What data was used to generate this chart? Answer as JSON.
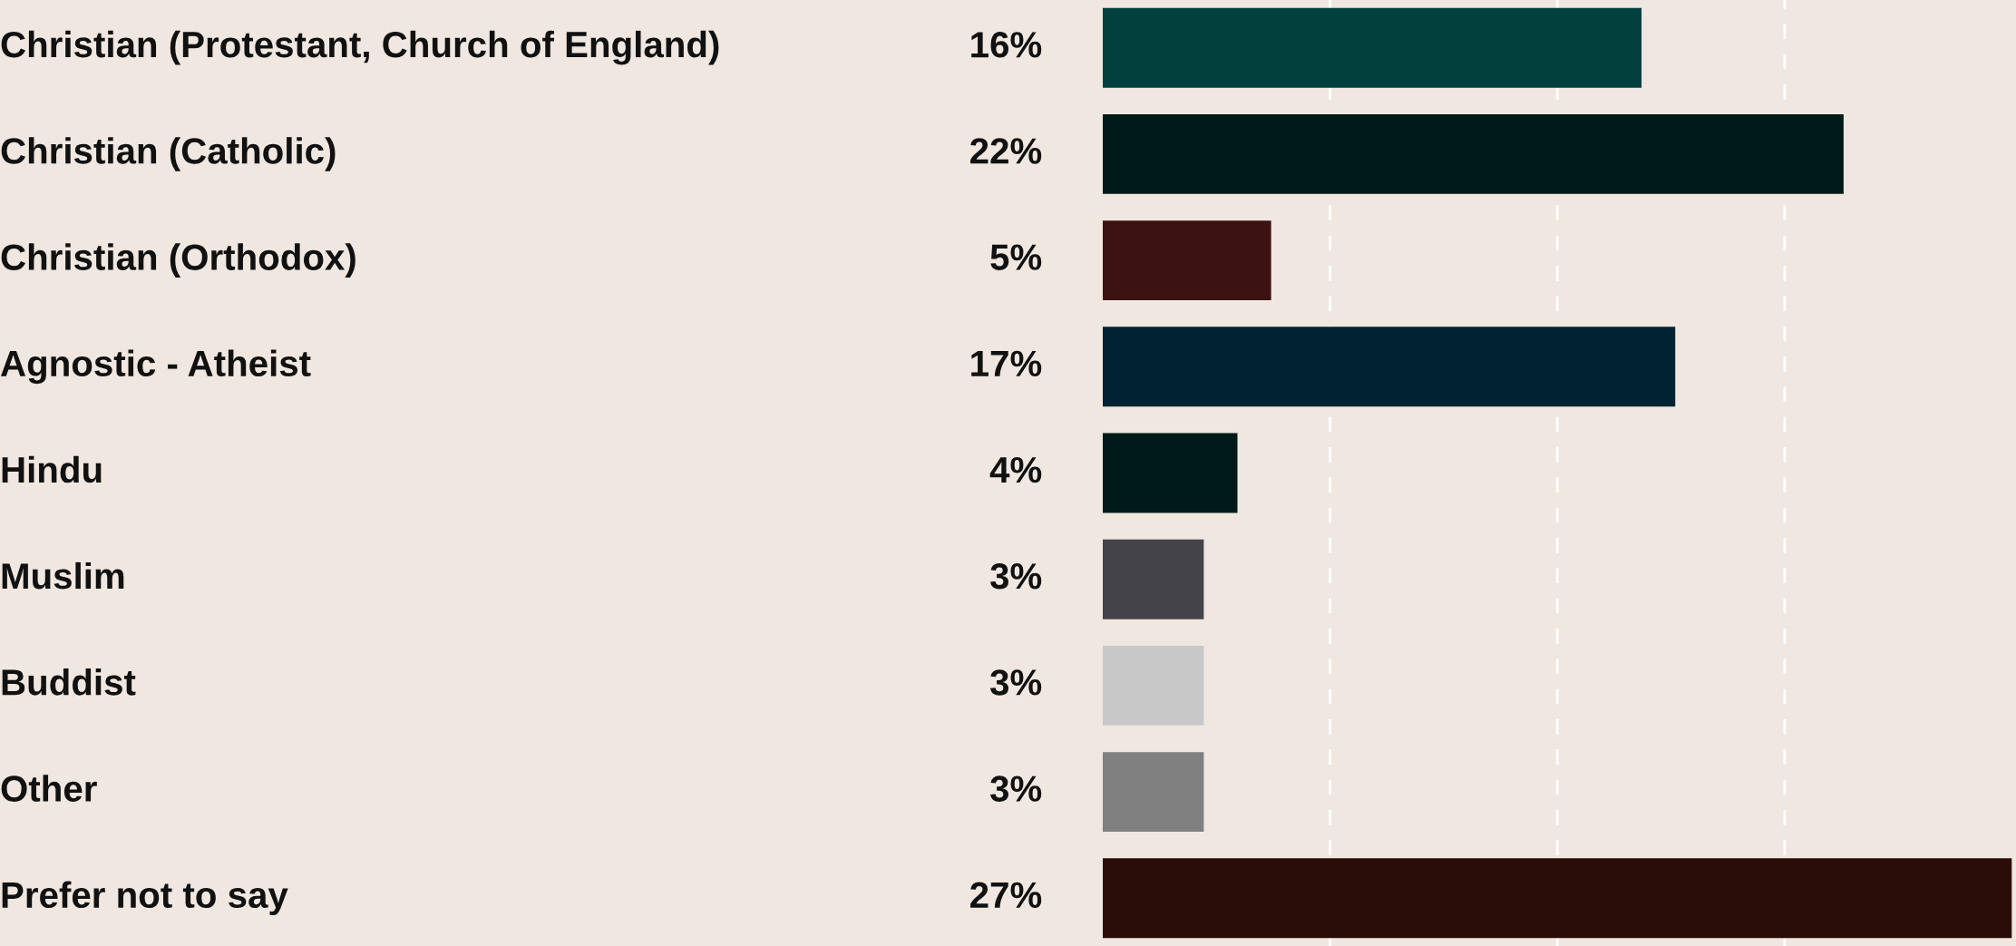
{
  "chart_data": {
    "type": "bar",
    "orientation": "horizontal",
    "categories": [
      "Christian (Protestant, Church of England)",
      "Christian (Catholic)",
      "Christian (Orthodox)",
      "Agnostic - Atheist",
      "Hindu",
      "Muslim",
      "Buddist",
      "Other",
      "Prefer not to say"
    ],
    "values": [
      16,
      22,
      5,
      17,
      4,
      3,
      3,
      3,
      27
    ],
    "value_labels": [
      "16%",
      "22%",
      "5%",
      "17%",
      "4%",
      "3%",
      "3%",
      "3%",
      "27%"
    ],
    "colors": [
      "#00403d",
      "#001a1a",
      "#3d1212",
      "#002233",
      "#001a1a",
      "#45434a",
      "#c8c8c8",
      "#808080",
      "#2a0c08"
    ],
    "xlim": [
      0,
      27
    ],
    "xticks": [
      {
        "value": 6.75,
        "label": null
      },
      {
        "value": 13.5,
        "label": null
      },
      {
        "value": 20.25,
        "label": null
      }
    ],
    "grid": "x"
  }
}
